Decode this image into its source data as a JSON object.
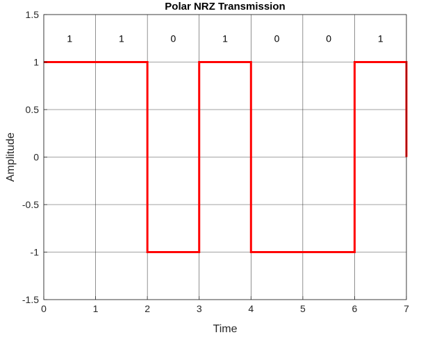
{
  "chart_data": {
    "type": "line",
    "title": "Polar NRZ Transmission",
    "xlabel": "Time",
    "ylabel": "Amplitude",
    "xlim": [
      0,
      7
    ],
    "ylim": [
      -1.5,
      1.5
    ],
    "xticks": [
      0,
      1,
      2,
      3,
      4,
      5,
      6,
      7
    ],
    "xtick_labels": [
      "0",
      "1",
      "2",
      "3",
      "4",
      "5",
      "6",
      "7"
    ],
    "yticks": [
      -1.5,
      -1,
      -0.5,
      0,
      0.5,
      1,
      1.5
    ],
    "ytick_labels": [
      "-1.5",
      "-1",
      "-0.5",
      "0",
      "0.5",
      "1",
      "1.5"
    ],
    "grid": true,
    "bits": [
      "1",
      "1",
      "0",
      "1",
      "0",
      "0",
      "1"
    ],
    "series": [
      {
        "color": "#ff0000",
        "x": [
          0,
          1,
          2,
          2,
          3,
          3,
          4,
          4,
          5,
          6,
          6,
          7,
          7
        ],
        "y": [
          1,
          1,
          1,
          -1,
          -1,
          1,
          1,
          -1,
          -1,
          -1,
          1,
          1,
          0
        ]
      }
    ],
    "colors": {
      "signal": "#ff0000",
      "grid": "#262626",
      "axis": "#262626"
    }
  }
}
